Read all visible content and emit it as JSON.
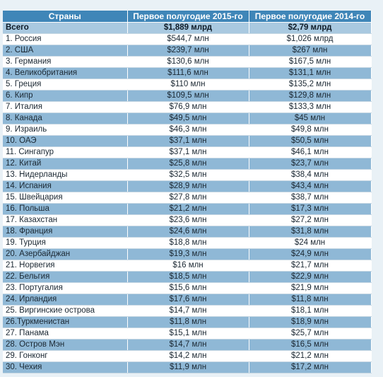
{
  "table": {
    "headers": [
      "Страны",
      "Первое полугодие 2015-го",
      "Первое полугодие 2014-го"
    ],
    "total": {
      "country": "Всего",
      "h1_2015": "$1,889 млрд",
      "h1_2014": "$2,79 млрд"
    },
    "rows": [
      {
        "country": "1. Россия",
        "h1_2015": "$544,7 млн",
        "h1_2014": "$1,026 млрд"
      },
      {
        "country": "2. США",
        "h1_2015": "$239,7 млн",
        "h1_2014": "$267 млн"
      },
      {
        "country": "3. Германия",
        "h1_2015": "$130,6 млн",
        "h1_2014": "$167,5 млн"
      },
      {
        "country": "4. Великобритания",
        "h1_2015": "$111,6 млн",
        "h1_2014": "$131,1 млн"
      },
      {
        "country": "5. Греция",
        "h1_2015": "$110 млн",
        "h1_2014": "$135,2 млн"
      },
      {
        "country": "6. Кипр",
        "h1_2015": "$109,5 млн",
        "h1_2014": "$129,8 млн"
      },
      {
        "country": "7. Италия",
        "h1_2015": "$76,9 млн",
        "h1_2014": "$133,3 млн"
      },
      {
        "country": "8. Канада",
        "h1_2015": "$49,5 млн",
        "h1_2014": "$45 млн"
      },
      {
        "country": "9. Израиль",
        "h1_2015": "$46,3 млн",
        "h1_2014": "$49,8 млн"
      },
      {
        "country": "10. ОАЭ",
        "h1_2015": "$37,1 млн",
        "h1_2014": "$50,5 млн"
      },
      {
        "country": "11. Сингапур",
        "h1_2015": "$37,1 млн",
        "h1_2014": "$46,1 млн"
      },
      {
        "country": "12. Китай",
        "h1_2015": "$25,8 млн",
        "h1_2014": "$23,7 млн"
      },
      {
        "country": "13. Нидерланды",
        "h1_2015": "$32,5 млн",
        "h1_2014": "$38,4 млн"
      },
      {
        "country": "14. Испания",
        "h1_2015": "$28,9 млн",
        "h1_2014": "$43,4 млн"
      },
      {
        "country": "15. Швейцария",
        "h1_2015": "$27,8 млн",
        "h1_2014": "$38,7 млн"
      },
      {
        "country": "16. Польша",
        "h1_2015": "$21,2 млн",
        "h1_2014": "$17,3 млн"
      },
      {
        "country": "17. Казахстан",
        "h1_2015": "$23,6 млн",
        "h1_2014": "$27,2 млн"
      },
      {
        "country": "18. Франция",
        "h1_2015": "$24,6 млн",
        "h1_2014": "$31,8 млн"
      },
      {
        "country": "19. Турция",
        "h1_2015": "$18,8 млн",
        "h1_2014": "$24 млн"
      },
      {
        "country": "20. Азербайджан",
        "h1_2015": "$19,3 млн",
        "h1_2014": "$24,9 млн"
      },
      {
        "country": "21. Норвегия",
        "h1_2015": "$16 млн",
        "h1_2014": "$21,7 млн"
      },
      {
        "country": "22. Бельгия",
        "h1_2015": "$18,5 млн",
        "h1_2014": "$22,9 млн"
      },
      {
        "country": "23. Португалия",
        "h1_2015": "$15,6 млн",
        "h1_2014": "$21,9 млн"
      },
      {
        "country": "24. Ирландия",
        "h1_2015": "$17,6 млн",
        "h1_2014": "$11,8 млн"
      },
      {
        "country": "25. Виргинские острова",
        "h1_2015": "$14,7 млн",
        "h1_2014": "$18,1 млн"
      },
      {
        "country": "26.Туркменистан",
        "h1_2015": "$11,8 млн",
        "h1_2014": "$18,9 млн"
      },
      {
        "country": "27. Панама",
        "h1_2015": "$15,1 млн",
        "h1_2014": "$25,7 млн"
      },
      {
        "country": "28. Остров Мэн",
        "h1_2015": "$14,7 млн",
        "h1_2014": "$16,5 млн"
      },
      {
        "country": "29. Гонконг",
        "h1_2015": "$14,2 млн",
        "h1_2014": "$21,2 млн"
      },
      {
        "country": "30. Чехия",
        "h1_2015": "$11,9 млн",
        "h1_2014": "$17,2 млн"
      }
    ]
  },
  "colors": {
    "header": "#3f86b8",
    "stripe": "#8fb8d6",
    "total": "#a9c9e0",
    "background": "#e9f1f6"
  }
}
